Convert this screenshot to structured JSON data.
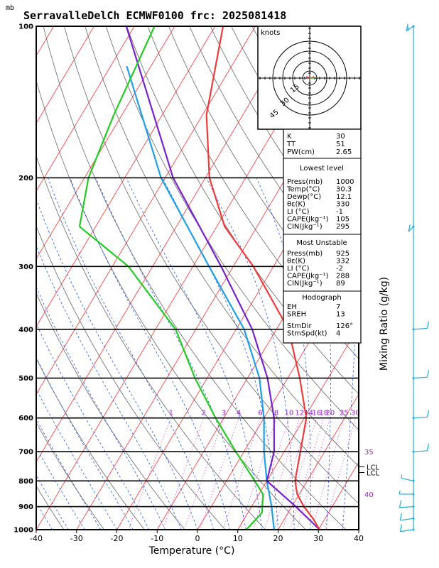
{
  "header": {
    "title": "SerravalleDelCh  ECMWF0100  frc: 2025081418",
    "pressure_unit": "mb",
    "x_axis_label": "Temperature (°C)",
    "right_axis_label": "Mixing Ratio (g/kg)"
  },
  "chart_data": {
    "type": "line",
    "xlim": [
      -40,
      40
    ],
    "ylim": [
      1000,
      100
    ],
    "y_scale": "log",
    "x_ticks": [
      -40,
      -30,
      -20,
      -10,
      0,
      10,
      20,
      30,
      40
    ],
    "y_ticks": [
      1000,
      900,
      800,
      700,
      600,
      500,
      400,
      300,
      200,
      100
    ],
    "mixing_ratio_labels": [
      "1",
      "2",
      "3",
      "4",
      "6",
      "8",
      "10",
      "12",
      "14",
      "16",
      "18",
      "20",
      "25",
      "30"
    ],
    "theta_e_labels": [
      "35",
      "40"
    ],
    "lcl_labels": [
      "LCL",
      "LCL"
    ],
    "colors": {
      "temperature": "#ee3b3b",
      "dewpoint": "#22cc22",
      "parcel": "#7722cc",
      "wetbulb": "#1ea0e6",
      "isotherm": "#ff4444",
      "dry_adiabat": "#666666",
      "moist_adiabat": "#2255ee",
      "mixing_ratio": "#cc33cc",
      "wind": "#22aadd"
    },
    "series": [],
    "temperature_profile": [
      {
        "p": 1000,
        "t": 30.3
      },
      {
        "p": 950,
        "t": 27
      },
      {
        "p": 900,
        "t": 23
      },
      {
        "p": 850,
        "t": 19.5
      },
      {
        "p": 800,
        "t": 17
      },
      {
        "p": 700,
        "t": 14
      },
      {
        "p": 600,
        "t": 10.5
      },
      {
        "p": 500,
        "t": 3
      },
      {
        "p": 400,
        "t": -7
      },
      {
        "p": 300,
        "t": -25
      },
      {
        "p": 250,
        "t": -38
      },
      {
        "p": 200,
        "t": -49
      },
      {
        "p": 150,
        "t": -59
      },
      {
        "p": 100,
        "t": -68
      }
    ],
    "dewpoint_profile": [
      {
        "p": 1000,
        "t": 12.1
      },
      {
        "p": 925,
        "t": 13.5
      },
      {
        "p": 850,
        "t": 11
      },
      {
        "p": 800,
        "t": 7
      },
      {
        "p": 700,
        "t": -2
      },
      {
        "p": 600,
        "t": -12
      },
      {
        "p": 500,
        "t": -23
      },
      {
        "p": 400,
        "t": -35
      },
      {
        "p": 300,
        "t": -56
      },
      {
        "p": 250,
        "t": -74
      },
      {
        "p": 200,
        "t": -79
      },
      {
        "p": 150,
        "t": -82
      },
      {
        "p": 100,
        "t": -85
      }
    ],
    "parcel_profile": [
      {
        "p": 1000,
        "t": 30.3
      },
      {
        "p": 900,
        "t": 21
      },
      {
        "p": 800,
        "t": 10
      },
      {
        "p": 700,
        "t": 7.5
      },
      {
        "p": 600,
        "t": 2.5
      },
      {
        "p": 500,
        "t": -5
      },
      {
        "p": 400,
        "t": -16
      },
      {
        "p": 300,
        "t": -33
      },
      {
        "p": 200,
        "t": -58
      },
      {
        "p": 100,
        "t": -92
      }
    ],
    "wetbulb_profile": [
      {
        "p": 1000,
        "t": 19
      },
      {
        "p": 900,
        "t": 15
      },
      {
        "p": 800,
        "t": 10
      },
      {
        "p": 700,
        "t": 5
      },
      {
        "p": 600,
        "t": 0
      },
      {
        "p": 500,
        "t": -7
      },
      {
        "p": 400,
        "t": -18
      },
      {
        "p": 300,
        "t": -36
      },
      {
        "p": 200,
        "t": -61
      },
      {
        "p": 120,
        "t": -86
      }
    ],
    "wind_profile": [
      {
        "p": 1000,
        "dir": 250,
        "spd": 10
      },
      {
        "p": 950,
        "dir": 250,
        "spd": 10
      },
      {
        "p": 900,
        "dir": 260,
        "spd": 10
      },
      {
        "p": 850,
        "dir": 270,
        "spd": 5
      },
      {
        "p": 800,
        "dir": 300,
        "spd": 5
      },
      {
        "p": 700,
        "dir": 80,
        "spd": 10
      },
      {
        "p": 600,
        "dir": 80,
        "spd": 10
      },
      {
        "p": 500,
        "dir": 80,
        "spd": 10
      },
      {
        "p": 400,
        "dir": 80,
        "spd": 10
      },
      {
        "p": 250,
        "dir": 200,
        "spd": 10
      },
      {
        "p": 100,
        "dir": 210,
        "spd": 15
      }
    ]
  },
  "hodograph": {
    "label": "knots",
    "ring_labels": [
      "15",
      "30",
      "45"
    ]
  },
  "indices": {
    "summary": [
      {
        "label": "K",
        "value": "30"
      },
      {
        "label": "TT",
        "value": "51"
      },
      {
        "label": "PW(cm)",
        "value": "2.65"
      }
    ],
    "lowest_level": {
      "heading": "Lowest level",
      "rows": [
        {
          "label": "Press(mb)",
          "value": "1000"
        },
        {
          "label": "Temp(°C)",
          "value": "30.3"
        },
        {
          "label": "Dewp(°C)",
          "value": "12.1"
        },
        {
          "label": "θε(K)",
          "value": "330"
        },
        {
          "label": "LI  (°C)",
          "value": "-1"
        },
        {
          "label": "CAPE(Jkg⁻¹)",
          "value": "105"
        },
        {
          "label": "CIN(Jkg⁻¹)",
          "value": "295"
        }
      ]
    },
    "most_unstable": {
      "heading": "Most Unstable",
      "rows": [
        {
          "label": "Press(mb)",
          "value": "925"
        },
        {
          "label": "θε(K)",
          "value": "332"
        },
        {
          "label": "LI  (°C)",
          "value": "-2"
        },
        {
          "label": "CAPE(Jkg⁻¹)",
          "value": "288"
        },
        {
          "label": "CIN(Jkg⁻¹)",
          "value": "89"
        }
      ]
    },
    "hodograph_box": {
      "heading": "Hodograph",
      "rows": [
        {
          "label": "EH",
          "value": "7"
        },
        {
          "label": "SREH",
          "value": "13"
        },
        {
          "label": "StmDir",
          "value": "126°"
        },
        {
          "label": "StmSpd(kt)",
          "value": "4"
        }
      ]
    }
  }
}
